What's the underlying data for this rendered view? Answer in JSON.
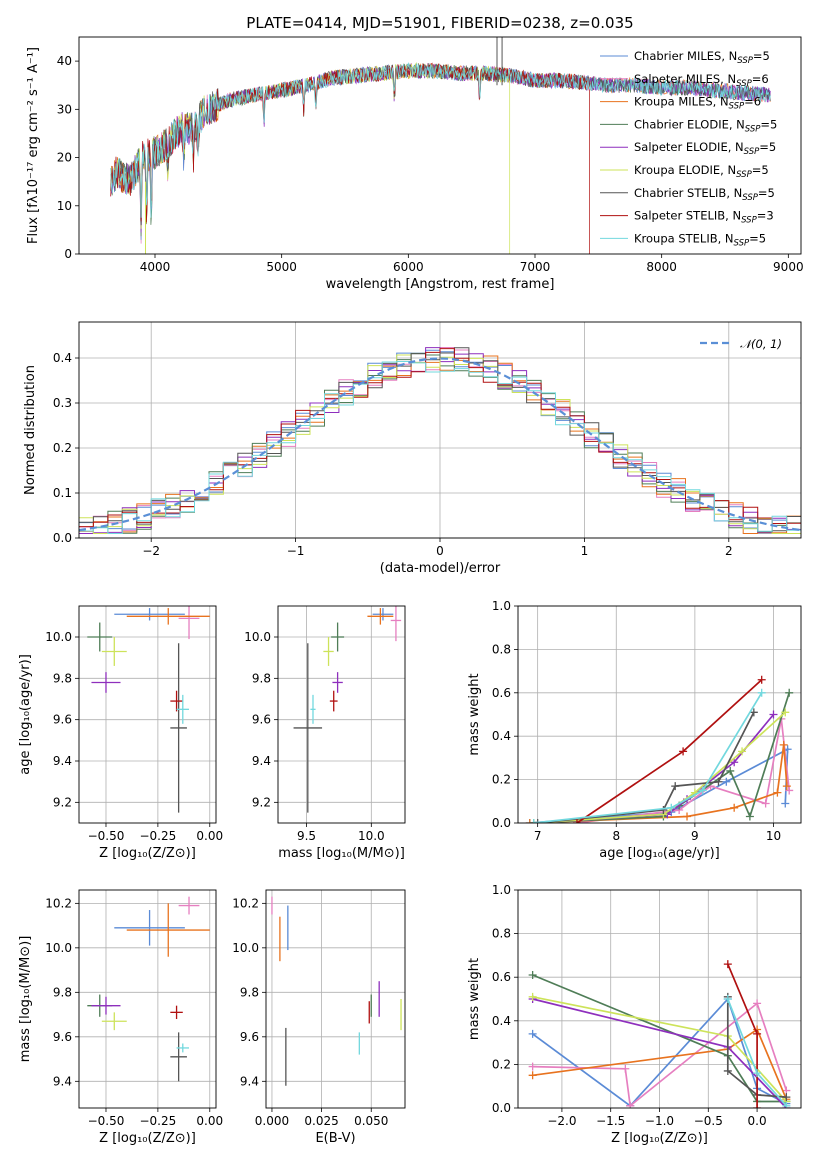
{
  "title": "PLATE=0414, MJD=51901, FIBERID=0238, z=0.035",
  "colors": {
    "Chabrier MILES": "#5b8bd6",
    "Salpeter MILES": "#e67fc0",
    "Kroupa MILES": "#e8731f",
    "Chabrier ELODIE": "#4f7d57",
    "Salpeter ELODIE": "#8e2fbd",
    "Kroupa ELODIE": "#cde35a",
    "Chabrier STELIB": "#555555",
    "Salpeter STELIB": "#b01010",
    "Kroupa STELIB": "#72d8de",
    "normal": "#5a8fd6",
    "grid": "#b0b0b0"
  },
  "legend": [
    {
      "model": "Chabrier MILES",
      "label": "Chabrier MILES, N",
      "sub": "SSP",
      "val": "=5"
    },
    {
      "model": "Salpeter MILES",
      "label": "Salpeter MILES, N",
      "sub": "SSP",
      "val": "=6"
    },
    {
      "model": "Kroupa MILES",
      "label": "Kroupa MILES, N",
      "sub": "SSP",
      "val": "=6"
    },
    {
      "model": "Chabrier ELODIE",
      "label": "Chabrier ELODIE, N",
      "sub": "SSP",
      "val": "=5"
    },
    {
      "model": "Salpeter ELODIE",
      "label": "Salpeter ELODIE, N",
      "sub": "SSP",
      "val": "=5"
    },
    {
      "model": "Kroupa ELODIE",
      "label": "Kroupa ELODIE, N",
      "sub": "SSP",
      "val": "=5"
    },
    {
      "model": "Chabrier STELIB",
      "label": "Chabrier STELIB, N",
      "sub": "SSP",
      "val": "=5"
    },
    {
      "model": "Salpeter STELIB",
      "label": "Salpeter STELIB, N",
      "sub": "SSP",
      "val": "=3"
    },
    {
      "model": "Kroupa STELIB",
      "label": "Kroupa STELIB, N",
      "sub": "SSP",
      "val": "=5"
    }
  ],
  "chart_data": [
    {
      "id": "spectrum",
      "type": "line",
      "xlabel": "wavelength [Angstrom, rest frame]",
      "ylabel": "Flux [fλ10⁻¹⁷ erg cm⁻² s⁻¹ A⁻¹]",
      "xlim": [
        3400,
        9100
      ],
      "ylim": [
        0,
        45
      ],
      "xticks": [
        4000,
        5000,
        6000,
        7000,
        8000,
        9000
      ],
      "yticks": [
        0,
        10,
        20,
        30,
        40
      ],
      "continuum_x": [
        3650,
        3700,
        3800,
        3900,
        4000,
        4100,
        4200,
        4300,
        4400,
        4500,
        4600,
        4800,
        5000,
        5200,
        5400,
        5600,
        5800,
        6000,
        6200,
        6400,
        6600,
        6800,
        7000,
        7200,
        7400,
        7600,
        7800,
        8000,
        8200,
        8400,
        8600,
        8860
      ],
      "continuum_y": [
        15,
        17,
        15,
        20,
        21,
        23,
        26,
        26,
        30,
        31,
        32,
        33,
        34,
        35,
        36.5,
        37,
        37.5,
        38,
        38,
        37.5,
        37.5,
        37,
        36,
        36,
        35.5,
        35,
        35,
        34.5,
        34.5,
        34,
        33.5,
        33
      ],
      "cutoffs": {
        "Kroupa ELODIE": 6800,
        "Salpeter STELIB": 7430
      },
      "x_end": 8860
    },
    {
      "id": "residuals",
      "type": "line",
      "xlabel": "(data-model)/error",
      "ylabel": "Normed distribution",
      "xlim": [
        -2.5,
        2.5
      ],
      "ylim": [
        0,
        0.48
      ],
      "xticks": [
        -2,
        -1,
        0,
        1,
        2
      ],
      "yticks": [
        0.0,
        0.1,
        0.2,
        0.3,
        0.4
      ],
      "legend": "𝒩(0, 1)",
      "bin_width": 0.1,
      "series": [
        {
          "name": "Chabrier MILES",
          "seed": 1
        },
        {
          "name": "Salpeter MILES",
          "seed": 2
        },
        {
          "name": "Kroupa MILES",
          "seed": 3
        },
        {
          "name": "Chabrier ELODIE",
          "seed": 4
        },
        {
          "name": "Salpeter ELODIE",
          "seed": 5
        },
        {
          "name": "Kroupa ELODIE",
          "seed": 6
        },
        {
          "name": "Chabrier STELIB",
          "seed": 7
        },
        {
          "name": "Salpeter STELIB",
          "seed": 8
        },
        {
          "name": "Kroupa STELIB",
          "seed": 9
        }
      ]
    },
    {
      "id": "age-vs-z",
      "type": "scatter",
      "xlabel": "Z [log₁₀(Z/Z⊙)]",
      "ylabel": "age  [log₁₀(age/yr)]",
      "xlim": [
        -0.63,
        0.03
      ],
      "ylim": [
        9.1,
        10.15
      ],
      "xticks": [
        -0.5,
        -0.25,
        0.0
      ],
      "xticklabels": [
        "−0.50",
        "−0.25",
        "0.00"
      ],
      "yticks": [
        9.2,
        9.4,
        9.6,
        9.8,
        10.0
      ],
      "points": [
        {
          "model": "Chabrier MILES",
          "x": -0.29,
          "y": 10.11,
          "xerr": 0.17,
          "yerr": 0.03
        },
        {
          "model": "Salpeter MILES",
          "x": -0.1,
          "y": 10.09,
          "xerr": 0.05,
          "yerr": 0.1
        },
        {
          "model": "Kroupa MILES",
          "x": -0.2,
          "y": 10.1,
          "xerr": 0.2,
          "yerr": 0.04
        },
        {
          "model": "Chabrier ELODIE",
          "x": -0.53,
          "y": 10.0,
          "xerr": 0.06,
          "yerr": 0.07
        },
        {
          "model": "Salpeter ELODIE",
          "x": -0.5,
          "y": 9.78,
          "xerr": 0.07,
          "yerr": 0.05
        },
        {
          "model": "Kroupa ELODIE",
          "x": -0.46,
          "y": 9.93,
          "xerr": 0.06,
          "yerr": 0.07
        },
        {
          "model": "Chabrier STELIB",
          "x": -0.15,
          "y": 9.56,
          "xerr": 0.04,
          "yerr": 0.41
        },
        {
          "model": "Salpeter STELIB",
          "x": -0.16,
          "y": 9.69,
          "xerr": 0.03,
          "yerr": 0.05
        },
        {
          "model": "Kroupa STELIB",
          "x": -0.13,
          "y": 9.65,
          "xerr": 0.03,
          "yerr": 0.07
        }
      ]
    },
    {
      "id": "age-vs-mass",
      "type": "scatter",
      "xlabel": "mass [log₁₀(M/M⊙)]",
      "ylabel": "",
      "xlim": [
        9.28,
        10.26
      ],
      "ylim": [
        9.1,
        10.15
      ],
      "xticks": [
        9.5,
        10.0
      ],
      "xticklabels": [
        "9.5",
        "10.0"
      ],
      "yticks": [
        9.2,
        9.4,
        9.6,
        9.8,
        10.0
      ],
      "points": [
        {
          "model": "Chabrier MILES",
          "x": 10.09,
          "y": 10.11,
          "xerr": 0.08,
          "yerr": 0.03
        },
        {
          "model": "Salpeter MILES",
          "x": 10.19,
          "y": 10.08,
          "xerr": 0.04,
          "yerr": 0.1
        },
        {
          "model": "Kroupa MILES",
          "x": 10.07,
          "y": 10.1,
          "xerr": 0.1,
          "yerr": 0.04
        },
        {
          "model": "Chabrier ELODIE",
          "x": 9.74,
          "y": 10.0,
          "xerr": 0.05,
          "yerr": 0.07
        },
        {
          "model": "Salpeter ELODIE",
          "x": 9.74,
          "y": 9.78,
          "xerr": 0.04,
          "yerr": 0.05
        },
        {
          "model": "Kroupa ELODIE",
          "x": 9.67,
          "y": 9.93,
          "xerr": 0.04,
          "yerr": 0.07
        },
        {
          "model": "Chabrier STELIB",
          "x": 9.51,
          "y": 9.56,
          "xerr": 0.11,
          "yerr": 0.41
        },
        {
          "model": "Salpeter STELIB",
          "x": 9.71,
          "y": 9.69,
          "xerr": 0.03,
          "yerr": 0.05
        },
        {
          "model": "Kroupa STELIB",
          "x": 9.55,
          "y": 9.65,
          "xerr": 0.02,
          "yerr": 0.07
        }
      ]
    },
    {
      "id": "weight-vs-age",
      "type": "line",
      "xlabel": "age  [log₁₀(age/yr)]",
      "ylabel": "mass weight",
      "xlim": [
        6.75,
        10.35
      ],
      "ylim": [
        0,
        1
      ],
      "xticks": [
        7,
        8,
        9,
        10
      ],
      "xticklabels": [
        "7",
        "8",
        "9",
        "10"
      ],
      "yticks": [
        0.0,
        0.2,
        0.4,
        0.6,
        0.8,
        1.0
      ],
      "series": [
        {
          "name": "Chabrier MILES",
          "x": [
            6.9,
            8.7,
            9.4,
            10.18,
            10.15
          ],
          "y": [
            0.0,
            0.05,
            0.19,
            0.34,
            0.09
          ]
        },
        {
          "name": "Salpeter MILES",
          "x": [
            7.5,
            8.8,
            9.2,
            9.9,
            10.1,
            10.2
          ],
          "y": [
            0.0,
            0.06,
            0.17,
            0.09,
            0.48,
            0.15
          ]
        },
        {
          "name": "Kroupa MILES",
          "x": [
            6.9,
            8.9,
            9.5,
            10.05,
            10.13,
            10.17
          ],
          "y": [
            0.0,
            0.03,
            0.07,
            0.14,
            0.36,
            0.17
          ]
        },
        {
          "name": "Chabrier ELODIE",
          "x": [
            6.95,
            8.6,
            8.8,
            9.45,
            9.7,
            10.2
          ],
          "y": [
            0.0,
            0.03,
            0.08,
            0.24,
            0.03,
            0.6
          ]
        },
        {
          "name": "Salpeter ELODIE",
          "x": [
            6.95,
            8.65,
            8.9,
            9.5,
            10.0
          ],
          "y": [
            0.0,
            0.04,
            0.11,
            0.28,
            0.5
          ]
        },
        {
          "name": "Kroupa ELODIE",
          "x": [
            6.95,
            8.6,
            9.0,
            9.6,
            10.15
          ],
          "y": [
            0.0,
            0.04,
            0.14,
            0.33,
            0.51
          ]
        },
        {
          "name": "Chabrier STELIB",
          "x": [
            7.0,
            8.6,
            8.75,
            9.3,
            9.75
          ],
          "y": [
            0.0,
            0.06,
            0.17,
            0.19,
            0.51
          ]
        },
        {
          "name": "Salpeter STELIB",
          "x": [
            7.5,
            8.85,
            9.85
          ],
          "y": [
            0.0,
            0.33,
            0.66
          ]
        },
        {
          "name": "Kroupa STELIB",
          "x": [
            6.95,
            8.7,
            9.1,
            9.85
          ],
          "y": [
            0.0,
            0.07,
            0.15,
            0.6
          ]
        }
      ]
    },
    {
      "id": "mass-vs-z",
      "type": "scatter",
      "xlabel": "Z [log₁₀(Z/Z⊙)]",
      "ylabel": "mass [log₁₀(M/M⊙)]",
      "xlim": [
        -0.63,
        0.03
      ],
      "ylim": [
        9.28,
        10.26
      ],
      "xticks": [
        -0.5,
        -0.25,
        0.0
      ],
      "xticklabels": [
        "−0.50",
        "−0.25",
        "0.00"
      ],
      "yticks": [
        9.4,
        9.6,
        9.8,
        10.0,
        10.2
      ],
      "points": [
        {
          "model": "Chabrier MILES",
          "x": -0.29,
          "y": 10.09,
          "xerr": 0.17,
          "yerr": 0.08
        },
        {
          "model": "Salpeter MILES",
          "x": -0.1,
          "y": 10.19,
          "xerr": 0.05,
          "yerr": 0.04
        },
        {
          "model": "Kroupa MILES",
          "x": -0.2,
          "y": 10.08,
          "xerr": 0.2,
          "yerr": 0.12
        },
        {
          "model": "Chabrier ELODIE",
          "x": -0.53,
          "y": 9.74,
          "xerr": 0.06,
          "yerr": 0.05
        },
        {
          "model": "Salpeter ELODIE",
          "x": -0.5,
          "y": 9.74,
          "xerr": 0.07,
          "yerr": 0.04
        },
        {
          "model": "Kroupa ELODIE",
          "x": -0.46,
          "y": 9.67,
          "xerr": 0.06,
          "yerr": 0.04
        },
        {
          "model": "Chabrier STELIB",
          "x": -0.15,
          "y": 9.51,
          "xerr": 0.04,
          "yerr": 0.11
        },
        {
          "model": "Salpeter STELIB",
          "x": -0.16,
          "y": 9.71,
          "xerr": 0.03,
          "yerr": 0.03
        },
        {
          "model": "Kroupa STELIB",
          "x": -0.13,
          "y": 9.55,
          "xerr": 0.03,
          "yerr": 0.02
        }
      ]
    },
    {
      "id": "mass-vs-ebv",
      "type": "scatter",
      "xlabel": "E(B-V)",
      "ylabel": "",
      "xlim": [
        -0.003,
        0.067
      ],
      "ylim": [
        9.28,
        10.26
      ],
      "xticks": [
        0.0,
        0.025,
        0.05
      ],
      "xticklabels": [
        "0.000",
        "0.025",
        "0.050"
      ],
      "yticks": [
        9.4,
        9.6,
        9.8,
        10.0,
        10.2
      ],
      "points": [
        {
          "model": "Chabrier MILES",
          "x": 0.008,
          "y": 10.09,
          "xerr": 0.0,
          "yerr": 0.1
        },
        {
          "model": "Salpeter MILES",
          "x": 0.0,
          "y": 10.19,
          "xerr": 0.0,
          "yerr": 0.04
        },
        {
          "model": "Kroupa MILES",
          "x": 0.004,
          "y": 10.04,
          "xerr": 0.0,
          "yerr": 0.1
        },
        {
          "model": "Chabrier ELODIE",
          "x": 0.05,
          "y": 9.74,
          "xerr": 0.0,
          "yerr": 0.05
        },
        {
          "model": "Salpeter ELODIE",
          "x": 0.054,
          "y": 9.77,
          "xerr": 0.0,
          "yerr": 0.08
        },
        {
          "model": "Kroupa ELODIE",
          "x": 0.065,
          "y": 9.7,
          "xerr": 0.0,
          "yerr": 0.07
        },
        {
          "model": "Chabrier STELIB",
          "x": 0.007,
          "y": 9.51,
          "xerr": 0.0,
          "yerr": 0.13
        },
        {
          "model": "Salpeter STELIB",
          "x": 0.049,
          "y": 9.71,
          "xerr": 0.0,
          "yerr": 0.05
        },
        {
          "model": "Kroupa STELIB",
          "x": 0.044,
          "y": 9.57,
          "xerr": 0.0,
          "yerr": 0.05
        }
      ]
    },
    {
      "id": "weight-vs-z",
      "type": "line",
      "xlabel": "Z [log₁₀(Z/Z⊙)]",
      "ylabel": "mass weight",
      "xlim": [
        -2.45,
        0.45
      ],
      "ylim": [
        0,
        1
      ],
      "xticks": [
        -2.0,
        -1.5,
        -1.0,
        -0.5,
        0.0
      ],
      "xticklabels": [
        "−2.0",
        "−1.5",
        "−1.0",
        "−0.5",
        "0.0"
      ],
      "yticks": [
        0.0,
        0.2,
        0.4,
        0.6,
        0.8,
        1.0
      ],
      "series": [
        {
          "name": "Chabrier MILES",
          "x": [
            -2.3,
            -1.3,
            -0.3,
            0.0,
            0.3
          ],
          "y": [
            0.34,
            0.01,
            0.5,
            0.09,
            0.02
          ]
        },
        {
          "name": "Salpeter MILES",
          "x": [
            -2.3,
            -1.35,
            -1.3,
            0.0,
            0.3
          ],
          "y": [
            0.19,
            0.18,
            0.01,
            0.48,
            0.08
          ]
        },
        {
          "name": "Kroupa MILES",
          "x": [
            -2.3,
            -0.3,
            0.0,
            0.3
          ],
          "y": [
            0.15,
            0.27,
            0.36,
            0.04
          ]
        },
        {
          "name": "Chabrier ELODIE",
          "x": [
            -2.3,
            -0.3,
            0.0,
            0.3
          ],
          "y": [
            0.61,
            0.24,
            0.03,
            0.03
          ]
        },
        {
          "name": "Salpeter ELODIE",
          "x": [
            -2.3,
            -0.3,
            0.3
          ],
          "y": [
            0.5,
            0.28,
            0.0
          ]
        },
        {
          "name": "Kroupa ELODIE",
          "x": [
            -2.3,
            -0.3,
            0.3
          ],
          "y": [
            0.51,
            0.33,
            0.03
          ]
        },
        {
          "name": "Chabrier STELIB",
          "x": [
            -0.3,
            -0.3,
            0.0,
            0.3
          ],
          "y": [
            0.51,
            0.17,
            0.06,
            0.05
          ]
        },
        {
          "name": "Salpeter STELIB",
          "x": [
            -0.3,
            0.0,
            0.0
          ],
          "y": [
            0.66,
            0.34,
            0.0
          ]
        },
        {
          "name": "Kroupa STELIB",
          "x": [
            -0.3,
            0.0,
            0.3
          ],
          "y": [
            0.5,
            0.16,
            0.01
          ]
        }
      ]
    }
  ]
}
